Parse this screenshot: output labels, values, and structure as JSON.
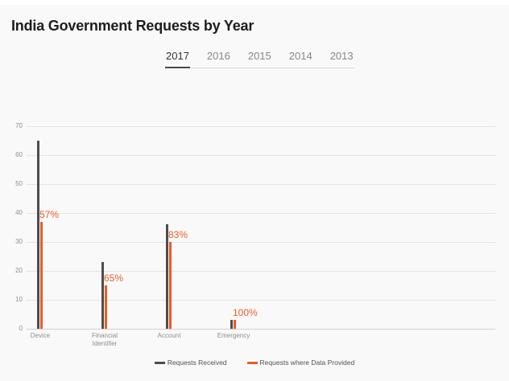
{
  "header": {
    "title": "India Government Requests by Year"
  },
  "tabs": {
    "items": [
      {
        "label": "2017",
        "active": true
      },
      {
        "label": "2016",
        "active": false
      },
      {
        "label": "2015",
        "active": false
      },
      {
        "label": "2014",
        "active": false
      },
      {
        "label": "2013",
        "active": false
      }
    ]
  },
  "chart_data": {
    "type": "bar",
    "title": "India Government Requests by Year",
    "categories": [
      "Device",
      "Financial\nIdentifier",
      "Account",
      "Emergency"
    ],
    "series": [
      {
        "name": "Requests Received",
        "color": "#4d4d4d",
        "values": [
          65,
          23,
          36,
          3
        ]
      },
      {
        "name": "Requests where Data Provided",
        "color": "#eb5b24",
        "values": [
          37,
          15,
          30,
          3
        ]
      }
    ],
    "percent_labels": [
      "57%",
      "65%",
      "83%",
      "100%"
    ],
    "percent_label_color": "#f05c28",
    "xlabel": "",
    "ylabel": "",
    "ylim": [
      0,
      70
    ],
    "ytick_step": 10,
    "yticks": [
      0,
      10,
      20,
      30,
      40,
      50,
      60,
      70
    ],
    "grid": true,
    "legend_position": "bottom"
  }
}
